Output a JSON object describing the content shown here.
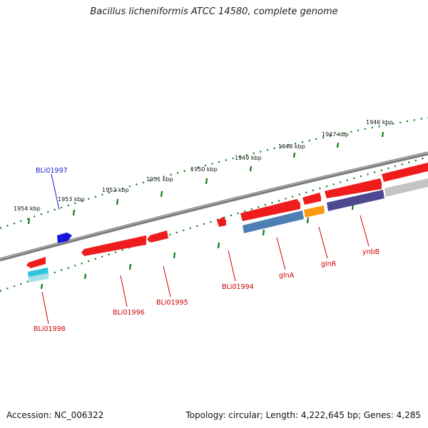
{
  "title": "Bacillus licheniformis ATCC 14580, complete genome",
  "footer": {
    "accession": "Accession: NC_006322",
    "summary": "Topology: circular; Length: 4,222,645 bp; Genes: 4,285"
  },
  "colors": {
    "backbone": "#7a7a7a",
    "tick": "#0b7a12",
    "gene_red": "#ee1c1c",
    "label_red": "#cc0000",
    "label_blue": "#1a1acc",
    "gene_blue": "#1515dd",
    "gene_steelblue": "#4d7fb5",
    "gene_orange": "#ff9a10",
    "gene_purple": "#4e4893",
    "gene_grey": "#c4c4c4",
    "gene_cyan": "#30c4e0"
  },
  "scale_labels": [
    "1946 kbp",
    "1947 kbp",
    "1948 kbp",
    "1949 kbp",
    "1950 kbp",
    "1951 kbp",
    "1952 kbp",
    "1953 kbp",
    "1954 kbp"
  ],
  "gene_labels": [
    {
      "id": "bli01997",
      "text": "BLi01997",
      "color": "blue"
    },
    {
      "id": "bli01998",
      "text": "BLi01998",
      "color": "red"
    },
    {
      "id": "bli01996",
      "text": "BLi01996",
      "color": "red"
    },
    {
      "id": "bli01995",
      "text": "BLi01995",
      "color": "red"
    },
    {
      "id": "bli01994",
      "text": "BLi01994",
      "color": "red"
    },
    {
      "id": "glna",
      "text": "glnA",
      "color": "red"
    },
    {
      "id": "glnr",
      "text": "glnR",
      "color": "red"
    },
    {
      "id": "ynbb",
      "text": "ynbB",
      "color": "red"
    }
  ]
}
